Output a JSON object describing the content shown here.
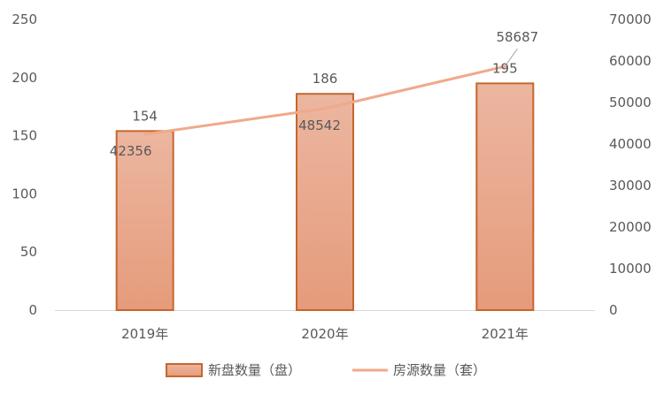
{
  "chart_data": {
    "type": "bar",
    "categories": [
      "2019年",
      "2020年",
      "2021年"
    ],
    "series": [
      {
        "name": "新盘数量（盘）",
        "type": "bar",
        "axis": "left",
        "values": [
          154,
          186,
          195
        ],
        "color": "#e9a283",
        "border_color": "#c5662e"
      },
      {
        "name": "房源数量（套）",
        "type": "line",
        "axis": "right",
        "values": [
          42356,
          48542,
          58687
        ],
        "color": "#f0a98a"
      }
    ],
    "y_left": {
      "min": 0,
      "max": 250,
      "ticks": [
        0,
        50,
        100,
        150,
        200,
        250
      ]
    },
    "y_right": {
      "min": 0,
      "max": 70000,
      "ticks": [
        0,
        10000,
        20000,
        30000,
        40000,
        50000,
        60000,
        70000
      ]
    },
    "title": "",
    "xlabel": "",
    "ylabel": "",
    "grid": false,
    "legend": "bottom"
  }
}
